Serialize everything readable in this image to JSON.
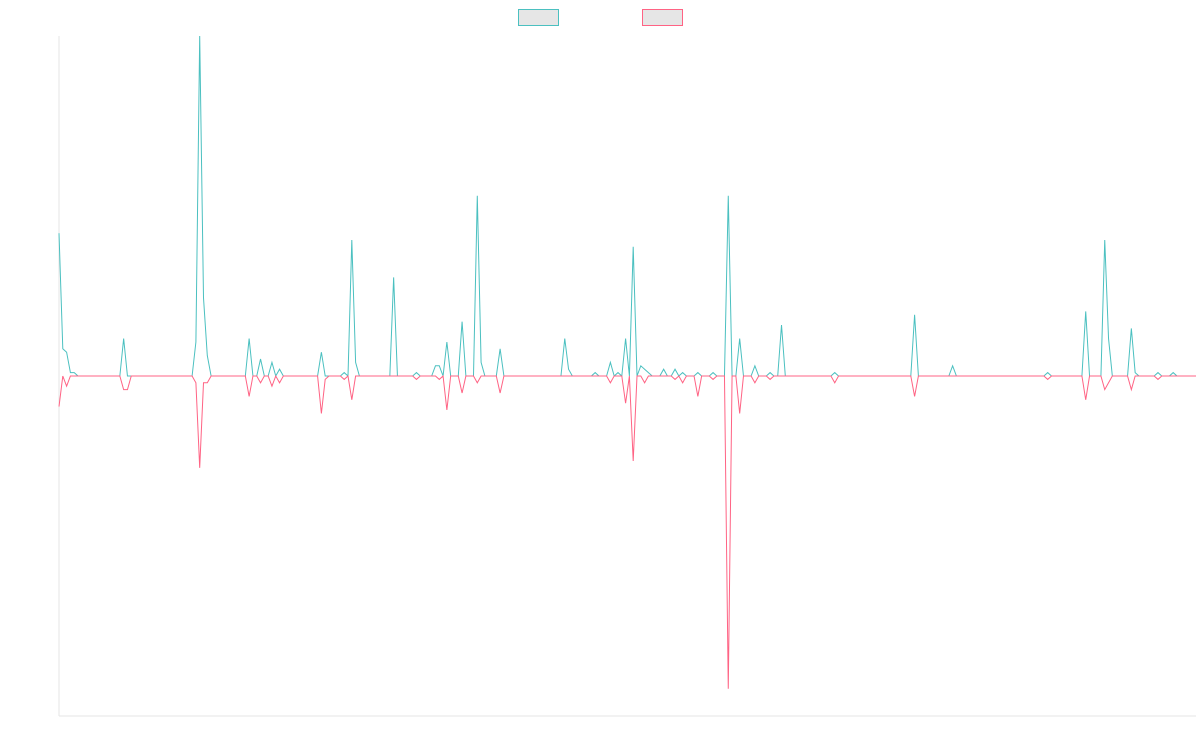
{
  "chart_data": {
    "type": "line",
    "title": "",
    "xlabel": "",
    "ylabel": "",
    "show_axis_ticks": false,
    "grid": false,
    "legend_position": "top-center",
    "ylim": [
      -100,
      100
    ],
    "n_points": 300,
    "series": [
      {
        "color": "#4bc0c0",
        "legend_fill": "#e6e6e6",
        "baseline": 0,
        "peaks": [
          [
            0,
            42
          ],
          [
            1,
            8
          ],
          [
            2,
            7
          ],
          [
            3,
            1
          ],
          [
            4,
            1
          ],
          [
            5,
            0
          ],
          [
            17,
            11
          ],
          [
            18,
            0
          ],
          [
            36,
            10
          ],
          [
            37,
            100
          ],
          [
            38,
            23
          ],
          [
            39,
            6
          ],
          [
            40,
            0
          ],
          [
            50,
            11
          ],
          [
            51,
            0
          ],
          [
            53,
            5
          ],
          [
            54,
            0
          ],
          [
            55,
            0
          ],
          [
            56,
            4
          ],
          [
            57,
            0
          ],
          [
            58,
            2
          ],
          [
            59,
            0
          ],
          [
            69,
            7
          ],
          [
            70,
            0
          ],
          [
            71,
            0
          ],
          [
            75,
            1
          ],
          [
            76,
            0
          ],
          [
            77,
            40
          ],
          [
            78,
            4
          ],
          [
            79,
            0
          ],
          [
            88,
            29
          ],
          [
            89,
            0
          ],
          [
            94,
            1
          ],
          [
            95,
            0
          ],
          [
            99,
            3
          ],
          [
            100,
            3
          ],
          [
            101,
            0
          ],
          [
            102,
            10
          ],
          [
            103,
            0
          ],
          [
            104,
            0
          ],
          [
            106,
            16
          ],
          [
            107,
            0
          ],
          [
            108,
            0
          ],
          [
            110,
            53
          ],
          [
            111,
            4
          ],
          [
            112,
            0
          ],
          [
            115,
            0
          ],
          [
            116,
            8
          ],
          [
            117,
            0
          ],
          [
            118,
            0
          ],
          [
            133,
            11
          ],
          [
            134,
            2
          ],
          [
            135,
            0
          ],
          [
            141,
            1
          ],
          [
            142,
            0
          ],
          [
            145,
            4
          ],
          [
            146,
            0
          ],
          [
            147,
            1
          ],
          [
            149,
            11
          ],
          [
            150,
            0
          ],
          [
            151,
            38
          ],
          [
            152,
            0
          ],
          [
            153,
            3
          ],
          [
            154,
            2
          ],
          [
            155,
            1
          ],
          [
            156,
            0
          ],
          [
            159,
            2
          ],
          [
            160,
            0
          ],
          [
            161,
            0
          ],
          [
            162,
            2
          ],
          [
            163,
            0
          ],
          [
            164,
            1
          ],
          [
            165,
            0
          ],
          [
            168,
            1
          ],
          [
            169,
            0
          ],
          [
            172,
            1
          ],
          [
            173,
            0
          ],
          [
            176,
            53
          ],
          [
            177,
            0
          ],
          [
            178,
            0
          ],
          [
            179,
            11
          ],
          [
            180,
            0
          ],
          [
            183,
            3
          ],
          [
            184,
            0
          ],
          [
            187,
            1
          ],
          [
            188,
            0
          ],
          [
            189,
            0
          ],
          [
            190,
            15
          ],
          [
            191,
            0
          ],
          [
            204,
            1
          ],
          [
            205,
            0
          ],
          [
            206,
            0
          ],
          [
            225,
            18
          ],
          [
            226,
            0
          ],
          [
            232,
            0
          ],
          [
            233,
            0
          ],
          [
            235,
            3
          ],
          [
            236,
            0
          ],
          [
            260,
            1
          ],
          [
            261,
            0
          ],
          [
            267,
            0
          ],
          [
            268,
            0
          ],
          [
            269,
            0
          ],
          [
            270,
            19
          ],
          [
            271,
            0
          ],
          [
            275,
            40
          ],
          [
            276,
            11
          ],
          [
            277,
            0
          ],
          [
            278,
            0
          ],
          [
            282,
            14
          ],
          [
            283,
            1
          ],
          [
            284,
            0
          ],
          [
            289,
            1
          ],
          [
            290,
            0
          ],
          [
            292,
            0
          ],
          [
            293,
            1
          ],
          [
            294,
            0
          ]
        ]
      },
      {
        "color": "#ff6384",
        "legend_fill": "#e6e6e6",
        "baseline": 0,
        "peaks": [
          [
            0,
            -9
          ],
          [
            1,
            0
          ],
          [
            2,
            -3
          ],
          [
            3,
            0
          ],
          [
            17,
            -4
          ],
          [
            18,
            -4
          ],
          [
            19,
            0
          ],
          [
            36,
            -2
          ],
          [
            37,
            -27
          ],
          [
            38,
            -2
          ],
          [
            39,
            -2
          ],
          [
            40,
            0
          ],
          [
            50,
            -6
          ],
          [
            51,
            0
          ],
          [
            53,
            -2
          ],
          [
            54,
            0
          ],
          [
            55,
            0
          ],
          [
            56,
            -3
          ],
          [
            57,
            0
          ],
          [
            58,
            -2
          ],
          [
            59,
            0
          ],
          [
            69,
            -11
          ],
          [
            70,
            -1
          ],
          [
            71,
            0
          ],
          [
            75,
            -1
          ],
          [
            76,
            0
          ],
          [
            77,
            -7
          ],
          [
            78,
            0
          ],
          [
            94,
            -1
          ],
          [
            95,
            0
          ],
          [
            99,
            0
          ],
          [
            100,
            -1
          ],
          [
            101,
            0
          ],
          [
            102,
            -10
          ],
          [
            103,
            0
          ],
          [
            104,
            0
          ],
          [
            106,
            -5
          ],
          [
            107,
            0
          ],
          [
            108,
            0
          ],
          [
            110,
            -2
          ],
          [
            111,
            0
          ],
          [
            112,
            0
          ],
          [
            115,
            0
          ],
          [
            116,
            -5
          ],
          [
            117,
            0
          ],
          [
            118,
            0
          ],
          [
            145,
            -2
          ],
          [
            146,
            0
          ],
          [
            147,
            0
          ],
          [
            149,
            -8
          ],
          [
            150,
            0
          ],
          [
            151,
            -25
          ],
          [
            152,
            0
          ],
          [
            153,
            0
          ],
          [
            154,
            -2
          ],
          [
            155,
            0
          ],
          [
            156,
            0
          ],
          [
            159,
            0
          ],
          [
            160,
            0
          ],
          [
            161,
            0
          ],
          [
            162,
            -1
          ],
          [
            163,
            0
          ],
          [
            164,
            -2
          ],
          [
            165,
            0
          ],
          [
            168,
            -6
          ],
          [
            169,
            0
          ],
          [
            172,
            -1
          ],
          [
            173,
            0
          ],
          [
            176,
            -92
          ],
          [
            177,
            0
          ],
          [
            178,
            0
          ],
          [
            179,
            -11
          ],
          [
            180,
            0
          ],
          [
            183,
            -2
          ],
          [
            184,
            0
          ],
          [
            187,
            -1
          ],
          [
            188,
            0
          ],
          [
            189,
            0
          ],
          [
            204,
            -2
          ],
          [
            205,
            0
          ],
          [
            206,
            0
          ],
          [
            225,
            -6
          ],
          [
            226,
            0
          ],
          [
            260,
            -1
          ],
          [
            261,
            0
          ],
          [
            269,
            0
          ],
          [
            270,
            -7
          ],
          [
            271,
            0
          ],
          [
            275,
            -4
          ],
          [
            276,
            -2
          ],
          [
            277,
            0
          ],
          [
            278,
            0
          ],
          [
            282,
            -4
          ],
          [
            283,
            0
          ],
          [
            284,
            0
          ],
          [
            289,
            -1
          ],
          [
            290,
            0
          ],
          [
            292,
            0
          ],
          [
            293,
            0
          ],
          [
            294,
            0
          ]
        ]
      }
    ]
  }
}
